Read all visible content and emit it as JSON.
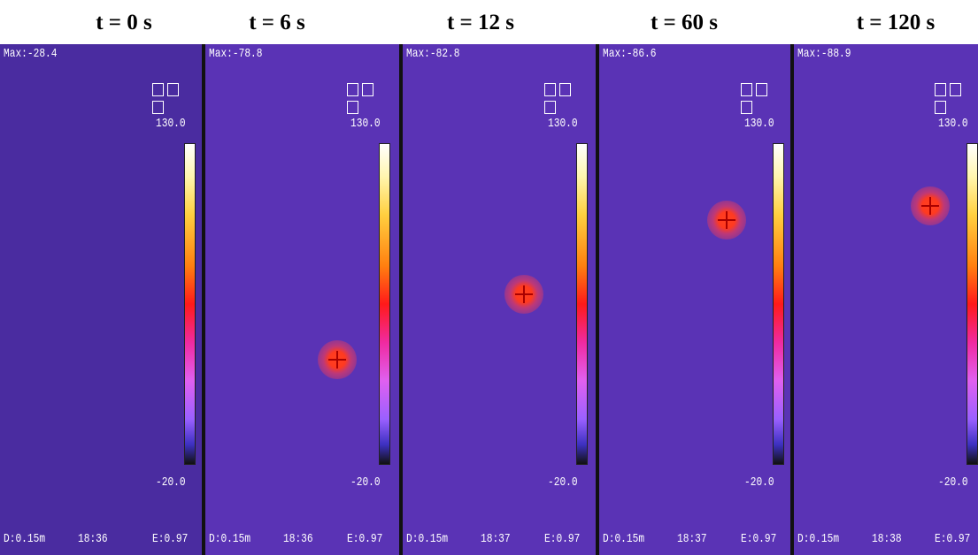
{
  "panels": [
    {
      "title": "t = 0 s",
      "max": "Max:-28.4",
      "scale_top": "130.0",
      "scale_bottom": "-20.0",
      "distance": "D:0.15m",
      "time": "18:36",
      "emissivity": "E:0.97"
    },
    {
      "title": "t = 6 s",
      "max": "Max:-78.8",
      "scale_top": "130.0",
      "scale_bottom": "-20.0",
      "distance": "D:0.15m",
      "time": "18:36",
      "emissivity": "E:0.97"
    },
    {
      "title": "t = 12 s",
      "max": "Max:-82.8",
      "scale_top": "130.0",
      "scale_bottom": "-20.0",
      "distance": "D:0.15m",
      "time": "18:37",
      "emissivity": "E:0.97"
    },
    {
      "title": "t = 60 s",
      "max": "Max:-86.6",
      "scale_top": "130.0",
      "scale_bottom": "-20.0",
      "distance": "D:0.15m",
      "time": "18:37",
      "emissivity": "E:0.97"
    },
    {
      "title": "t = 120 s",
      "max": "Max:-88.9",
      "scale_top": "130.0",
      "scale_bottom": "-20.0",
      "distance": "D:0.15m",
      "time": "18:38",
      "emissivity": "E:0.97"
    }
  ]
}
